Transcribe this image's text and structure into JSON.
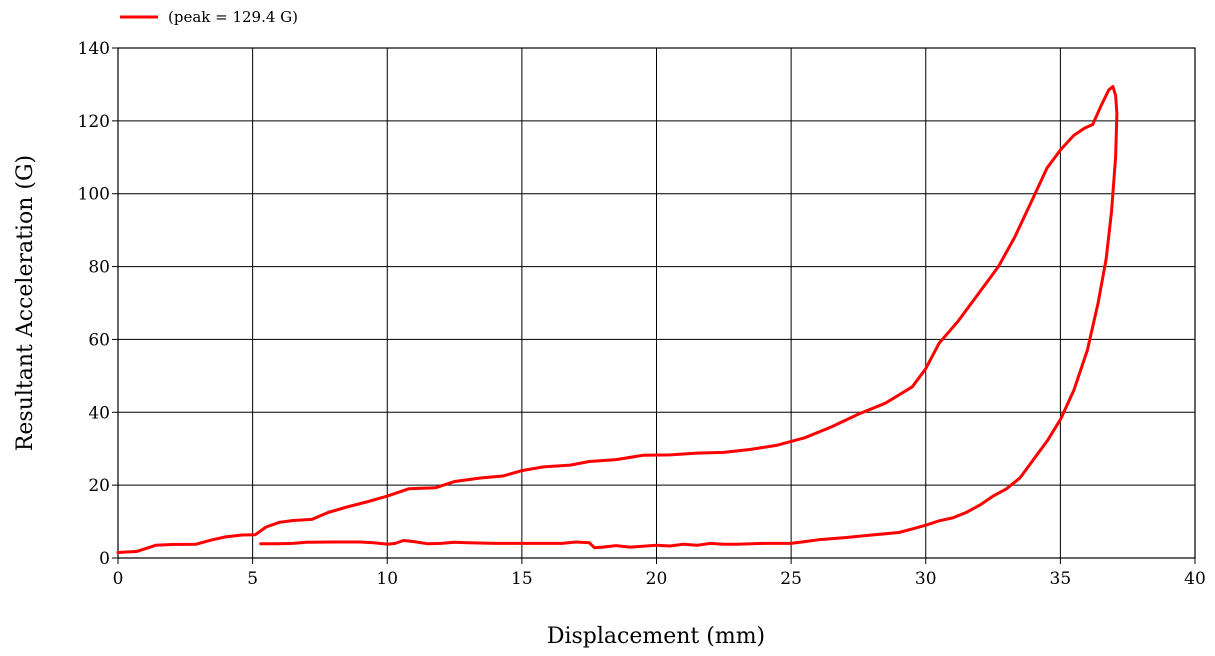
{
  "chart_data": {
    "type": "line",
    "title": "",
    "xlabel": "Displacement (mm)",
    "ylabel": "Resultant Acceleration (G)",
    "xlim": [
      0,
      40
    ],
    "ylim": [
      0,
      140
    ],
    "xticks": [
      "0",
      "5",
      "10",
      "15",
      "20",
      "25",
      "30",
      "35",
      "40"
    ],
    "yticks": [
      "0",
      "20",
      "40",
      "60",
      "80",
      "100",
      "120",
      "140"
    ],
    "grid": true,
    "legend_position": "top-left",
    "series": [
      {
        "name": "(peak = 129.4 G)",
        "color": "#ff0000",
        "points": [
          [
            0,
            1.5
          ],
          [
            0.7,
            1.8
          ],
          [
            1.4,
            3.5
          ],
          [
            2,
            3.7
          ],
          [
            2.9,
            3.8
          ],
          [
            3.5,
            5
          ],
          [
            4,
            5.8
          ],
          [
            4.6,
            6.3
          ],
          [
            5.1,
            6.4
          ],
          [
            5.5,
            8.5
          ],
          [
            6,
            9.8
          ],
          [
            6.5,
            10.3
          ],
          [
            7.2,
            10.6
          ],
          [
            7.8,
            12.5
          ],
          [
            8.5,
            14
          ],
          [
            9.3,
            15.5
          ],
          [
            10,
            17
          ],
          [
            10.8,
            19
          ],
          [
            11.8,
            19.3
          ],
          [
            12.5,
            21
          ],
          [
            13.5,
            22
          ],
          [
            14.3,
            22.5
          ],
          [
            15,
            24
          ],
          [
            15.8,
            25
          ],
          [
            16.8,
            25.5
          ],
          [
            17.5,
            26.5
          ],
          [
            18.5,
            27
          ],
          [
            19.5,
            28.2
          ],
          [
            20.5,
            28.3
          ],
          [
            21.5,
            28.8
          ],
          [
            22.5,
            29
          ],
          [
            23.5,
            29.8
          ],
          [
            24.5,
            31
          ],
          [
            25.5,
            33
          ],
          [
            26.5,
            36
          ],
          [
            27.5,
            39.5
          ],
          [
            28.5,
            42.5
          ],
          [
            29.5,
            47
          ],
          [
            30,
            52
          ],
          [
            30.5,
            59
          ],
          [
            31.2,
            65
          ],
          [
            32,
            73
          ],
          [
            32.7,
            80
          ],
          [
            33.3,
            88
          ],
          [
            34,
            99
          ],
          [
            34.5,
            107
          ],
          [
            35,
            112
          ],
          [
            35.5,
            116
          ],
          [
            35.9,
            118
          ],
          [
            36.2,
            119
          ],
          [
            36.5,
            124
          ],
          [
            36.8,
            128.5
          ],
          [
            36.95,
            129.4
          ],
          [
            37.05,
            127
          ],
          [
            37.1,
            122
          ],
          [
            37.05,
            110
          ],
          [
            36.9,
            95
          ],
          [
            36.7,
            82
          ],
          [
            36.4,
            70
          ],
          [
            36,
            57
          ],
          [
            35.5,
            46
          ],
          [
            35,
            38
          ],
          [
            34.5,
            32
          ],
          [
            34,
            27
          ],
          [
            33.5,
            22
          ],
          [
            33,
            19
          ],
          [
            32.5,
            17
          ],
          [
            32,
            14.5
          ],
          [
            31.5,
            12.5
          ],
          [
            31,
            11
          ],
          [
            30.5,
            10.2
          ],
          [
            30,
            9
          ],
          [
            29.5,
            8
          ],
          [
            29,
            7
          ],
          [
            28,
            6.3
          ],
          [
            27,
            5.6
          ],
          [
            26,
            5
          ],
          [
            25.5,
            4.5
          ],
          [
            25,
            4
          ],
          [
            24,
            4
          ],
          [
            23,
            3.8
          ],
          [
            22.5,
            3.8
          ],
          [
            22,
            4
          ],
          [
            21.5,
            3.5
          ],
          [
            21,
            3.8
          ],
          [
            20.5,
            3.3
          ],
          [
            20,
            3.5
          ],
          [
            19.5,
            3.2
          ],
          [
            19,
            3
          ],
          [
            18.5,
            3.4
          ],
          [
            18,
            3
          ],
          [
            17.7,
            2.8
          ],
          [
            17.5,
            4.2
          ],
          [
            17,
            4.4
          ],
          [
            16.5,
            4
          ],
          [
            16,
            4
          ],
          [
            15,
            4
          ],
          [
            14,
            4
          ],
          [
            13,
            4.2
          ],
          [
            12.5,
            4.3
          ],
          [
            12,
            4
          ],
          [
            11.5,
            3.9
          ],
          [
            11,
            4.5
          ],
          [
            10.6,
            4.8
          ],
          [
            10.3,
            4
          ],
          [
            10,
            3.8
          ],
          [
            9.5,
            4.2
          ],
          [
            9,
            4.4
          ],
          [
            8,
            4.4
          ],
          [
            7,
            4.3
          ],
          [
            6.5,
            4
          ],
          [
            6,
            3.9
          ],
          [
            5.5,
            3.9
          ],
          [
            5.3,
            3.9
          ]
        ]
      }
    ]
  }
}
